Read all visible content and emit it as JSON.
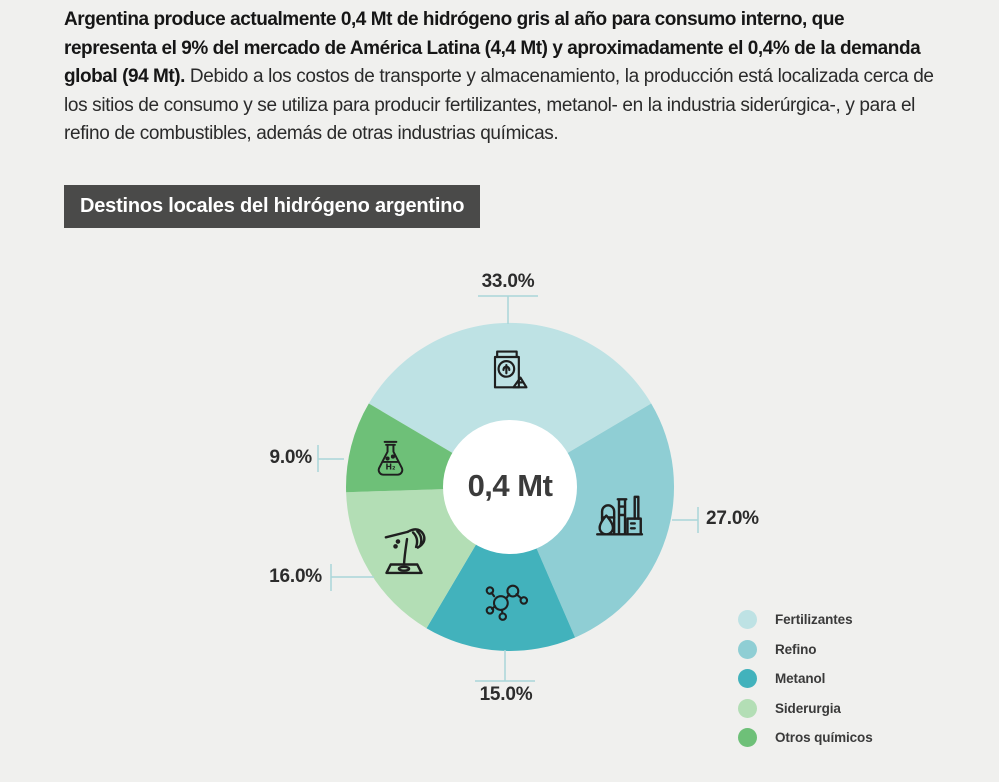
{
  "page": {
    "background": "#f0f0ee",
    "intro": {
      "bold_text": "Argentina produce actualmente 0,4 Mt de hidrógeno gris al año para consumo interno, que representa el 9% del mercado de América Latina (4,4 Mt) y aproximadamente el 0,4% de la demanda global (94 Mt).",
      "regular_text": " Debido a los costos de transporte y almacenamiento, la producción está localizada cerca de los sitios de consumo y se utiliza para producir fertilizantes, metanol- en la industria siderúrgica-, y para el refino de combustibles, además de otras industrias químicas."
    },
    "section_title": "Destinos locales del hidrógeno argentino",
    "section_title_bg": "#4a4a49"
  },
  "chart_data": {
    "type": "pie",
    "subtype": "donut",
    "title": "Destinos locales del hidrógeno argentino",
    "center_label": "0,4 Mt",
    "unit": "%",
    "legend_position": "bottom-right",
    "callout_line_color": "#a9d6d9",
    "slices": [
      {
        "name": "Fertilizantes",
        "value": 33.0,
        "label": "33.0%",
        "color": "#bee2e4",
        "icon": "fertilizer-bag-icon"
      },
      {
        "name": "Refino",
        "value": 27.0,
        "label": "27.0%",
        "color": "#8fced4",
        "icon": "refinery-icon"
      },
      {
        "name": "Metanol",
        "value": 15.0,
        "label": "15.0%",
        "color": "#42b2bc",
        "icon": "molecule-icon"
      },
      {
        "name": "Siderurgia",
        "value": 16.0,
        "label": "16.0%",
        "color": "#b3deb5",
        "icon": "metal-casting-icon"
      },
      {
        "name": "Otros químicos",
        "value": 9.0,
        "label": "9.0%",
        "color": "#6ec078",
        "icon": "flask-icon"
      }
    ]
  }
}
